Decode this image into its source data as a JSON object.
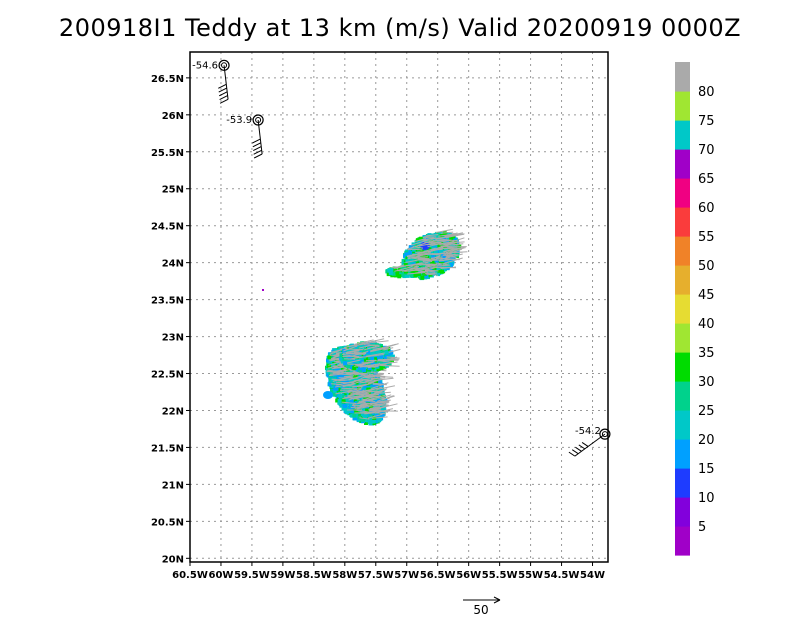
{
  "title": "200918I1 Teddy at 13 km (m/s) Valid 20200919 0000Z",
  "map": {
    "lon_range": [
      -60.5,
      -53.75
    ],
    "lat_range": [
      19.95,
      26.85
    ],
    "x_ticks": [
      {
        "lon": -60.5,
        "label": "60.5W"
      },
      {
        "lon": -60.0,
        "label": "60W"
      },
      {
        "lon": -59.5,
        "label": "59.5W"
      },
      {
        "lon": -59.0,
        "label": "59W"
      },
      {
        "lon": -58.5,
        "label": "58.5W"
      },
      {
        "lon": -58.0,
        "label": "58W"
      },
      {
        "lon": -57.5,
        "label": "57.5W"
      },
      {
        "lon": -57.0,
        "label": "57W"
      },
      {
        "lon": -56.5,
        "label": "56.5W"
      },
      {
        "lon": -56.0,
        "label": "56W"
      },
      {
        "lon": -55.5,
        "label": "55.5W"
      },
      {
        "lon": -55.0,
        "label": "55W"
      },
      {
        "lon": -54.5,
        "label": "54.5W"
      },
      {
        "lon": -54.0,
        "label": "54W"
      }
    ],
    "y_ticks": [
      {
        "lat": 20.0,
        "label": "20N"
      },
      {
        "lat": 20.5,
        "label": "20.5N"
      },
      {
        "lat": 21.0,
        "label": "21N"
      },
      {
        "lat": 21.5,
        "label": "21.5N"
      },
      {
        "lat": 22.0,
        "label": "22N"
      },
      {
        "lat": 22.5,
        "label": "22.5N"
      },
      {
        "lat": 23.0,
        "label": "23N"
      },
      {
        "lat": 23.5,
        "label": "23.5N"
      },
      {
        "lat": 24.0,
        "label": "24N"
      },
      {
        "lat": 24.5,
        "label": "24.5N"
      },
      {
        "lat": 25.0,
        "label": "25N"
      },
      {
        "lat": 25.5,
        "label": "25.5N"
      },
      {
        "lat": 26.0,
        "label": "26N"
      },
      {
        "lat": 26.5,
        "label": "26.5N"
      }
    ],
    "grid": true
  },
  "colorbar": {
    "colors": [
      "#a000c8",
      "#8200dc",
      "#1e3cff",
      "#00a0ff",
      "#00c8c8",
      "#00d28c",
      "#00dc00",
      "#a0e632",
      "#e6dc32",
      "#e6af2d",
      "#f08228",
      "#fa3c3c",
      "#f00082",
      "#a000c8",
      "#00c8c8",
      "#a0e632",
      "#aaaaaa"
    ],
    "labels": [
      "5",
      "10",
      "15",
      "20",
      "25",
      "30",
      "35",
      "40",
      "45",
      "50",
      "55",
      "60",
      "65",
      "70",
      "75",
      "80"
    ]
  },
  "stations": [
    {
      "label": "-54.6",
      "lon": -59.95,
      "lat": 26.67
    },
    {
      "label": "-53.9",
      "lon": -59.4,
      "lat": 25.93
    },
    {
      "label": "-54.2",
      "lon": -53.8,
      "lat": 21.68
    }
  ],
  "wind_regions": [
    {
      "name": "north-cluster",
      "lon_range": [
        -57.1,
        -56.3
      ],
      "lat_range": [
        23.75,
        24.5
      ],
      "peak_color": "#1e3cff"
    },
    {
      "name": "south-cluster",
      "lon_range": [
        -58.3,
        -57.3
      ],
      "lat_range": [
        21.75,
        23.25
      ],
      "peak_color": "#00a0ff"
    }
  ],
  "reference_vector": {
    "label": "50"
  }
}
